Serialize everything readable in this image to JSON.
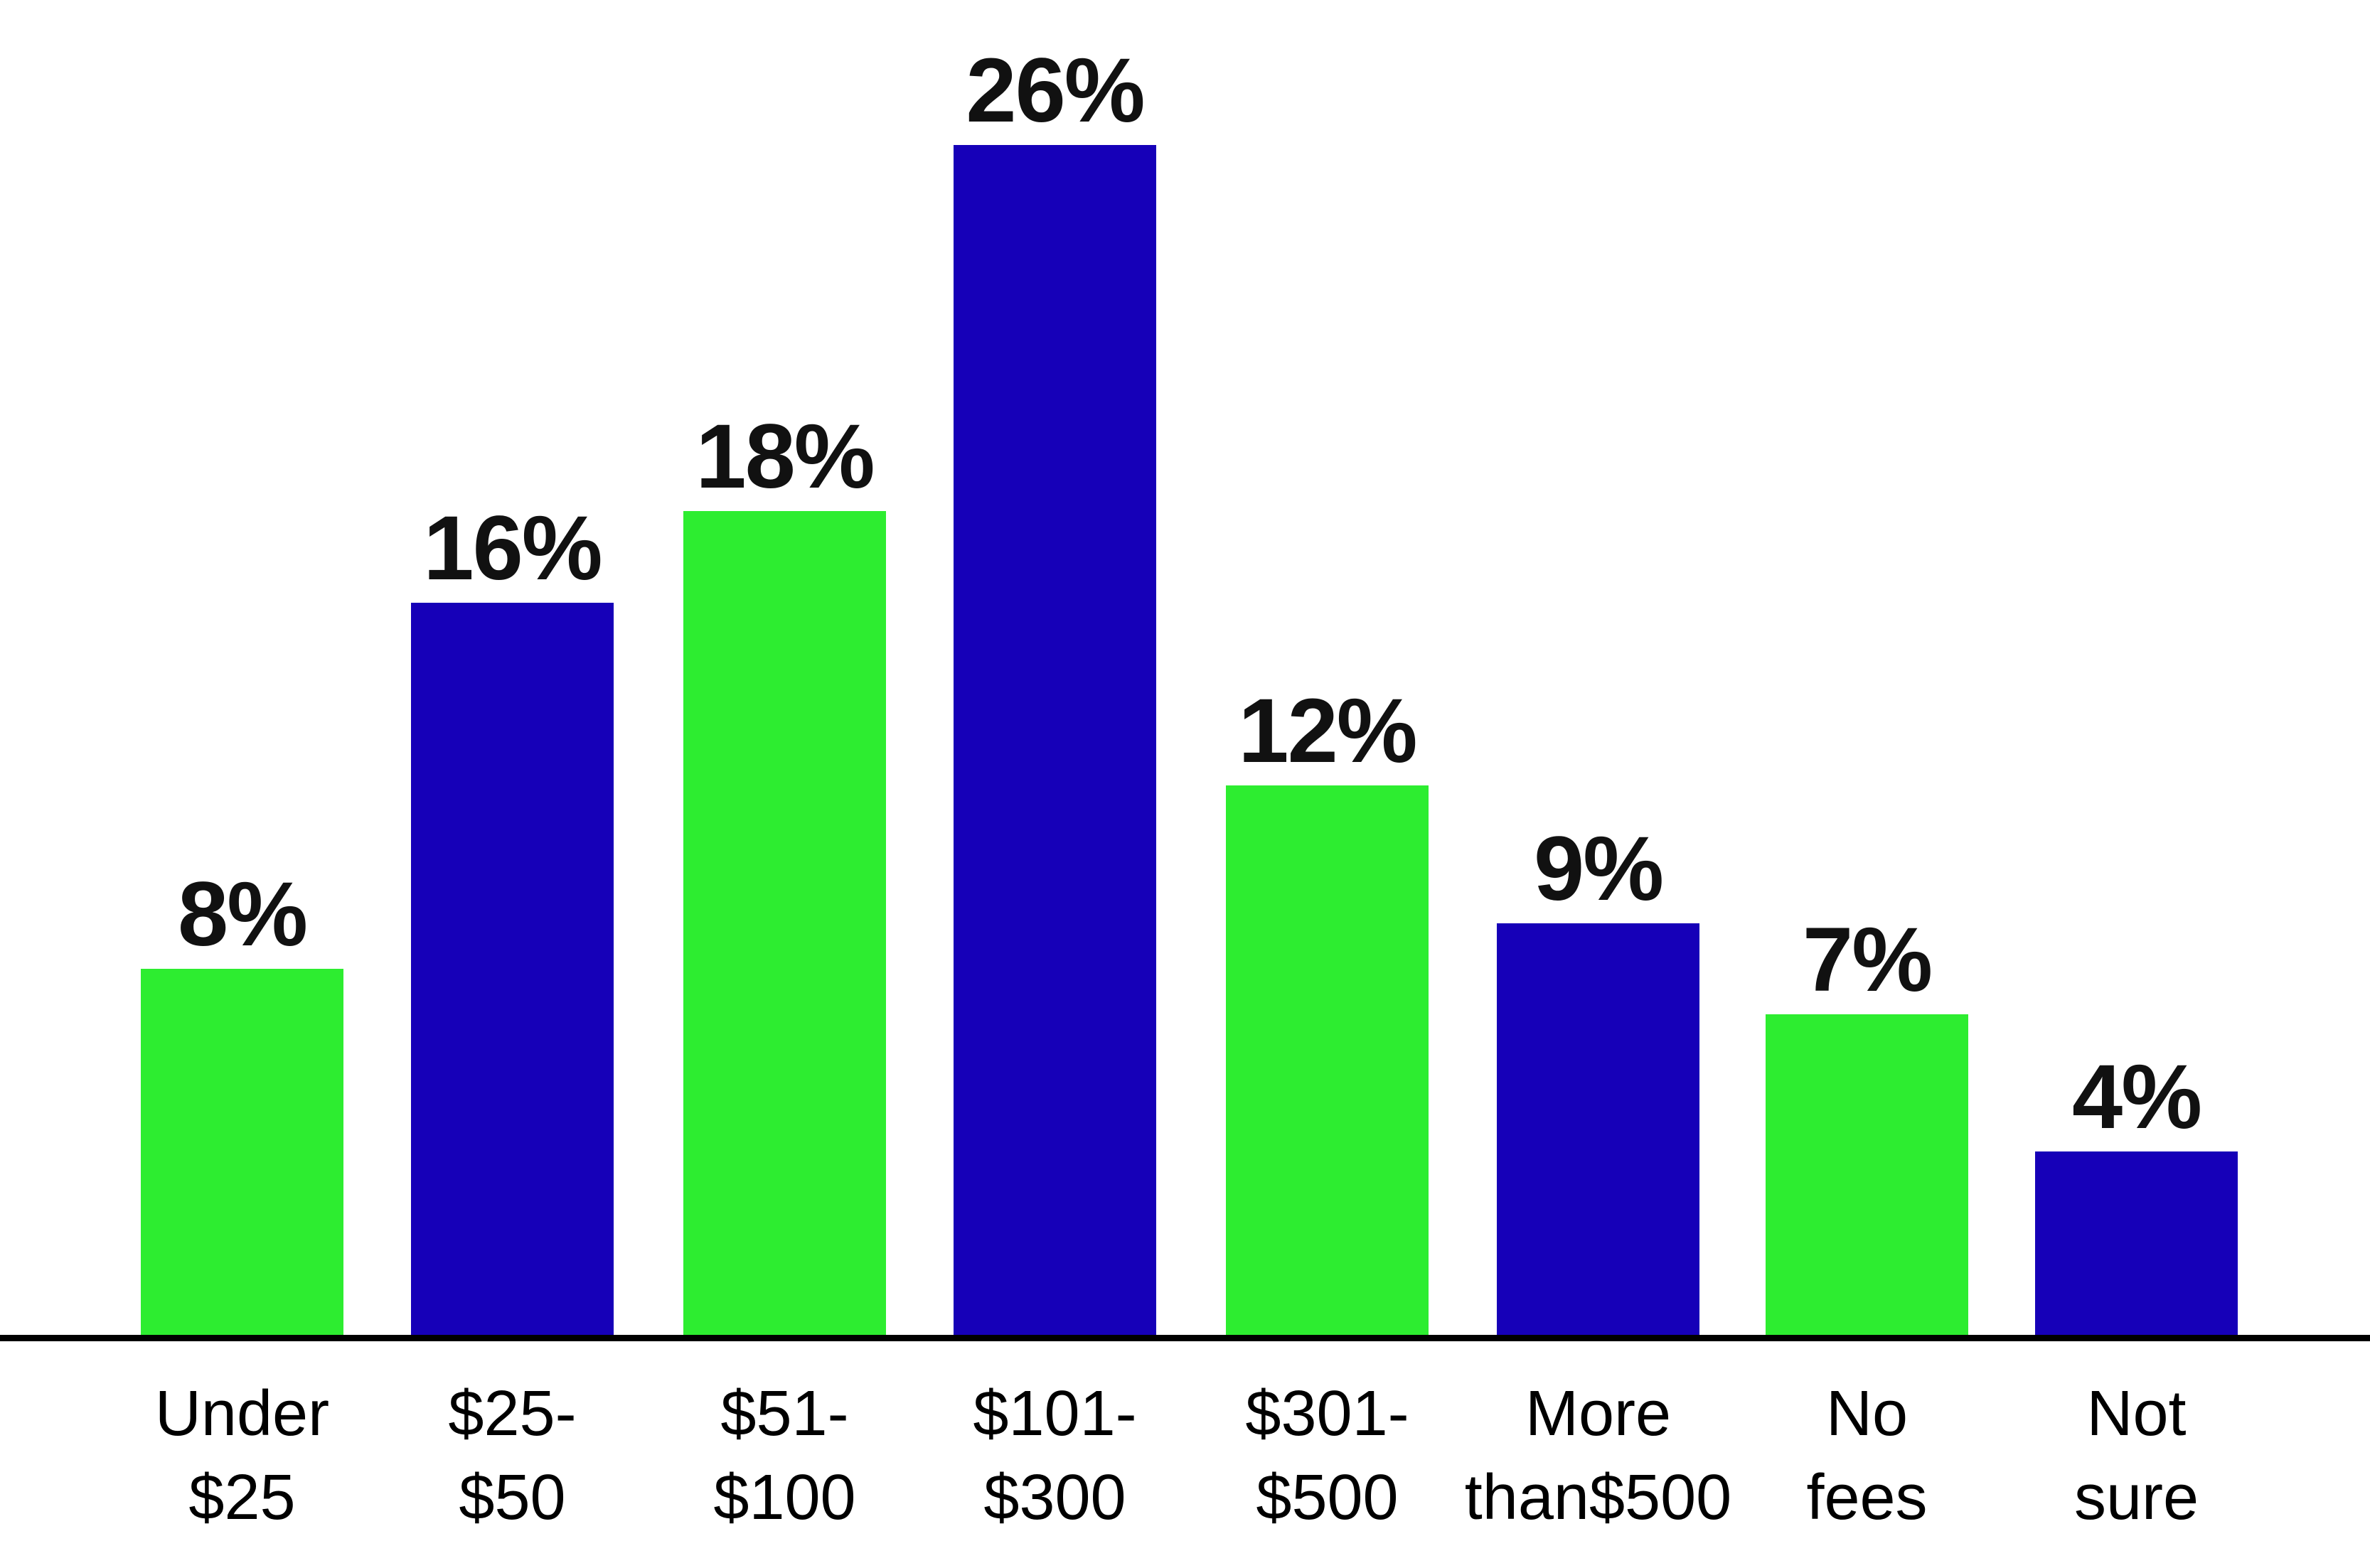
{
  "chart_data": {
    "type": "bar",
    "title": "",
    "xlabel": "",
    "ylabel": "",
    "ylim": [
      0,
      28
    ],
    "grid": false,
    "legend": null,
    "categories": [
      "Under $25",
      "$25-$50",
      "$51-$100",
      "$101-$300",
      "$301-$500",
      "More than$500",
      "No fees",
      "Not sure"
    ],
    "category_lines": [
      [
        "Under",
        "$25"
      ],
      [
        "$25-",
        "$50"
      ],
      [
        "$51-",
        "$100"
      ],
      [
        "$101-",
        "$300"
      ],
      [
        "$301-",
        "$500"
      ],
      [
        "More",
        "than$500"
      ],
      [
        "No",
        "fees"
      ],
      [
        "Not",
        "sure"
      ]
    ],
    "values": [
      8,
      16,
      18,
      26,
      12,
      9,
      7,
      4
    ],
    "data_labels": [
      "8%",
      "16%",
      "18%",
      "26%",
      "12%",
      "9%",
      "7%",
      "4%"
    ],
    "bar_colors": [
      "#2DED30",
      "#1600B8",
      "#2DED30",
      "#1600B8",
      "#2DED30",
      "#1600B8",
      "#2DED30",
      "#1600B8"
    ]
  },
  "colors": {
    "green": "#2DED30",
    "blue": "#1600B8",
    "axis": "#000000",
    "text": "#111111"
  }
}
